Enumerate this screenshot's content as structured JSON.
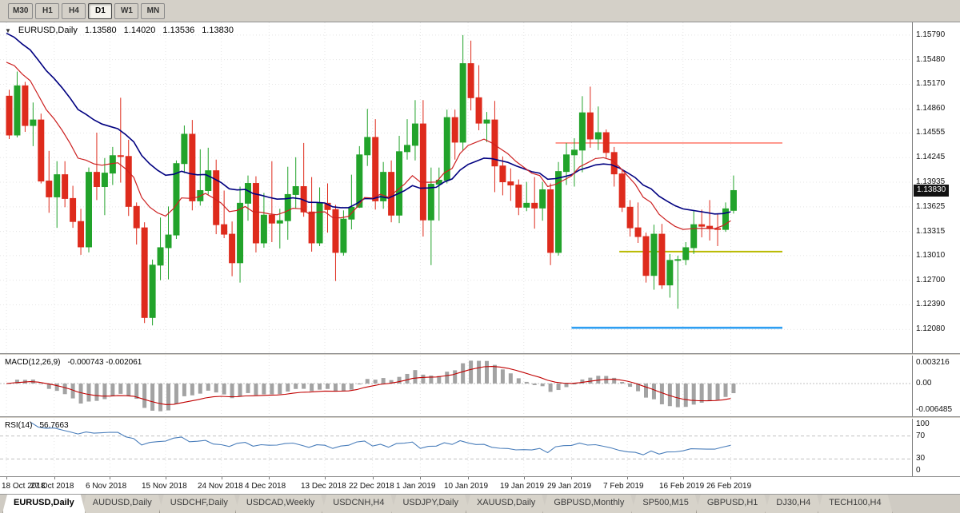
{
  "toolbar": {
    "timeframes": [
      {
        "label": "M30",
        "active": false
      },
      {
        "label": "H1",
        "active": false
      },
      {
        "label": "H4",
        "active": false
      },
      {
        "label": "D1",
        "active": true
      },
      {
        "label": "W1",
        "active": false
      },
      {
        "label": "MN",
        "active": false
      }
    ]
  },
  "chart": {
    "info": {
      "symbol_period": "EURUSD,Daily",
      "open": "1.13580",
      "high": "1.14020",
      "low": "1.13536",
      "close": "1.13830"
    }
  },
  "colors": {
    "bull": "#22a32b",
    "bear": "#de2b1c",
    "ma_slow": "#000080",
    "ma_fast": "#cc2020",
    "macd_hist": "#a3a3a3",
    "macd_signal": "#c00000",
    "rsi_line": "#4a7ebb",
    "level_red": "#ff6a5a",
    "level_yellow": "#b9ba00",
    "level_blue": "#2f9ff2",
    "grid": "#e4e4e4",
    "level_dash": "#c0c0c0",
    "price_tag_bg": "#111111",
    "price_tag_text": "#ffffff"
  },
  "chart_data": {
    "type": "candlestick",
    "title": "EURUSD,Daily",
    "price_ticks": [
      "1.15790",
      "1.15480",
      "1.15170",
      "1.14860",
      "1.14555",
      "1.14245",
      "1.13935",
      "1.13625",
      "1.13315",
      "1.13010",
      "1.12700",
      "1.12390",
      "1.12080"
    ],
    "price_range": [
      1.1178,
      1.1595
    ],
    "current_price": "1.13830",
    "current_price_value": 1.1383,
    "date_ticks": [
      [
        0,
        "18 Oct 2018"
      ],
      [
        6,
        "27 Oct 2018"
      ],
      [
        13,
        "6 Nov 2018"
      ],
      [
        20,
        "15 Nov 2018"
      ],
      [
        27,
        "24 Nov 2018"
      ],
      [
        33,
        "4 Dec 2018"
      ],
      [
        40,
        "13 Dec 2018"
      ],
      [
        46,
        "22 Dec 2018"
      ],
      [
        52,
        "1 Jan 2019"
      ],
      [
        58,
        "10 Jan 2019"
      ],
      [
        65,
        "19 Jan 2019"
      ],
      [
        71,
        "29 Jan 2019"
      ],
      [
        78,
        "7 Feb 2019"
      ],
      [
        85,
        "16 Feb 2019"
      ],
      [
        91,
        "26 Feb 2019"
      ]
    ],
    "ohlc": [
      [
        1.1502,
        1.151,
        1.1448,
        1.1453
      ],
      [
        1.1453,
        1.1533,
        1.145,
        1.1515
      ],
      [
        1.1515,
        1.152,
        1.1457,
        1.1465
      ],
      [
        1.1465,
        1.1494,
        1.1439,
        1.1472
      ],
      [
        1.1472,
        1.148,
        1.1392,
        1.1395
      ],
      [
        1.1395,
        1.1433,
        1.1355,
        1.1375
      ],
      [
        1.1375,
        1.142,
        1.1336,
        1.1403
      ],
      [
        1.1403,
        1.142,
        1.1362,
        1.1373
      ],
      [
        1.1373,
        1.1389,
        1.1336,
        1.1344
      ],
      [
        1.1344,
        1.136,
        1.1302,
        1.1312
      ],
      [
        1.1312,
        1.1412,
        1.1305,
        1.1406
      ],
      [
        1.1406,
        1.1456,
        1.1371,
        1.1388
      ],
      [
        1.1388,
        1.1424,
        1.1352,
        1.1405
      ],
      [
        1.1405,
        1.1438,
        1.139,
        1.1427
      ],
      [
        1.1427,
        1.15,
        1.1393,
        1.1426
      ],
      [
        1.1426,
        1.1447,
        1.1351,
        1.1363
      ],
      [
        1.1363,
        1.1368,
        1.1315,
        1.1336
      ],
      [
        1.1336,
        1.1343,
        1.1216,
        1.1223
      ],
      [
        1.1223,
        1.1296,
        1.1213,
        1.1289
      ],
      [
        1.1289,
        1.1349,
        1.127,
        1.1311
      ],
      [
        1.1311,
        1.1363,
        1.1271,
        1.1327
      ],
      [
        1.1327,
        1.1421,
        1.1322,
        1.1417
      ],
      [
        1.1417,
        1.1465,
        1.1405,
        1.1454
      ],
      [
        1.1454,
        1.1472,
        1.1358,
        1.137
      ],
      [
        1.137,
        1.1435,
        1.1364,
        1.1383
      ],
      [
        1.1383,
        1.1437,
        1.1378,
        1.1408
      ],
      [
        1.1408,
        1.1422,
        1.1328,
        1.134
      ],
      [
        1.134,
        1.1383,
        1.1323,
        1.1328
      ],
      [
        1.1328,
        1.1344,
        1.1275,
        1.1292
      ],
      [
        1.1292,
        1.1388,
        1.1267,
        1.1367
      ],
      [
        1.1367,
        1.1402,
        1.1345,
        1.1392
      ],
      [
        1.1392,
        1.1401,
        1.1305,
        1.1317
      ],
      [
        1.1317,
        1.138,
        1.1311,
        1.1352
      ],
      [
        1.1352,
        1.142,
        1.1318,
        1.1342
      ],
      [
        1.1342,
        1.136,
        1.131,
        1.1345
      ],
      [
        1.1345,
        1.1413,
        1.1321,
        1.1378
      ],
      [
        1.1378,
        1.1425,
        1.136,
        1.1388
      ],
      [
        1.1388,
        1.1443,
        1.135,
        1.1356
      ],
      [
        1.1356,
        1.14,
        1.1306,
        1.1317
      ],
      [
        1.1317,
        1.1387,
        1.1313,
        1.1367
      ],
      [
        1.1367,
        1.1392,
        1.133,
        1.1359
      ],
      [
        1.1359,
        1.1365,
        1.1269,
        1.1305
      ],
      [
        1.1305,
        1.1358,
        1.1301,
        1.1347
      ],
      [
        1.1347,
        1.1403,
        1.1334,
        1.1362
      ],
      [
        1.1362,
        1.1439,
        1.1361,
        1.1428
      ],
      [
        1.1428,
        1.1486,
        1.1414,
        1.145
      ],
      [
        1.145,
        1.1473,
        1.1359,
        1.137
      ],
      [
        1.137,
        1.1419,
        1.136,
        1.1406
      ],
      [
        1.1406,
        1.1421,
        1.1343,
        1.1352
      ],
      [
        1.1352,
        1.1452,
        1.1342,
        1.1432
      ],
      [
        1.1432,
        1.1473,
        1.1422,
        1.144
      ],
      [
        1.144,
        1.1497,
        1.1421,
        1.1467
      ],
      [
        1.1467,
        1.1497,
        1.1325,
        1.1346
      ],
      [
        1.1346,
        1.1412,
        1.1289,
        1.1391
      ],
      [
        1.1391,
        1.1412,
        1.1345,
        1.1396
      ],
      [
        1.1396,
        1.1485,
        1.1392,
        1.1475
      ],
      [
        1.1475,
        1.1485,
        1.1422,
        1.1444
      ],
      [
        1.1444,
        1.1579,
        1.1434,
        1.1543
      ],
      [
        1.1543,
        1.1572,
        1.1484,
        1.15
      ],
      [
        1.15,
        1.1541,
        1.1459,
        1.1468
      ],
      [
        1.1468,
        1.1482,
        1.1444,
        1.1472
      ],
      [
        1.1472,
        1.1496,
        1.1381,
        1.1414
      ],
      [
        1.1414,
        1.1426,
        1.1377,
        1.1394
      ],
      [
        1.1394,
        1.1411,
        1.137,
        1.139
      ],
      [
        1.139,
        1.1397,
        1.1352,
        1.1362
      ],
      [
        1.1362,
        1.1394,
        1.1357,
        1.1367
      ],
      [
        1.1367,
        1.14,
        1.1335,
        1.1361
      ],
      [
        1.1361,
        1.1394,
        1.1345,
        1.1384
      ],
      [
        1.1384,
        1.1392,
        1.1289,
        1.1305
      ],
      [
        1.1305,
        1.1419,
        1.1301,
        1.1407
      ],
      [
        1.1407,
        1.1443,
        1.139,
        1.1428
      ],
      [
        1.1428,
        1.1449,
        1.1388,
        1.1434
      ],
      [
        1.1434,
        1.1502,
        1.1406,
        1.1481
      ],
      [
        1.1481,
        1.1514,
        1.1437,
        1.1448
      ],
      [
        1.1448,
        1.1489,
        1.1434,
        1.1456
      ],
      [
        1.1456,
        1.146,
        1.1424,
        1.1431
      ],
      [
        1.1431,
        1.1438,
        1.1388,
        1.1404
      ],
      [
        1.1404,
        1.141,
        1.1356,
        1.1362
      ],
      [
        1.1362,
        1.1371,
        1.1325,
        1.1336
      ],
      [
        1.1336,
        1.1368,
        1.1317,
        1.1325
      ],
      [
        1.1325,
        1.133,
        1.1267,
        1.1276
      ],
      [
        1.1276,
        1.134,
        1.1258,
        1.1328
      ],
      [
        1.1328,
        1.1341,
        1.1259,
        1.1264
      ],
      [
        1.1264,
        1.1303,
        1.1248,
        1.1295
      ],
      [
        1.1295,
        1.1301,
        1.1234,
        1.1296
      ],
      [
        1.1296,
        1.1318,
        1.1289,
        1.1311
      ],
      [
        1.1311,
        1.1358,
        1.1303,
        1.134
      ],
      [
        1.134,
        1.1359,
        1.1324,
        1.1338
      ],
      [
        1.1338,
        1.1371,
        1.132,
        1.1335
      ],
      [
        1.1335,
        1.1354,
        1.1313,
        1.1334
      ],
      [
        1.1334,
        1.1368,
        1.1331,
        1.136
      ],
      [
        1.1358,
        1.1402,
        1.1354,
        1.1383
      ]
    ],
    "overlays": [
      {
        "name": "ma-slow",
        "period": 25,
        "seed": 1.1592
      },
      {
        "name": "ma-fast",
        "period": 13,
        "seed": 1.156
      }
    ],
    "hlines": [
      {
        "price": 1.1443,
        "from_index": 69,
        "color": "level_red",
        "width": 1.4
      },
      {
        "price": 1.1306,
        "from_index": 77,
        "color": "level_yellow",
        "width": 2
      },
      {
        "price": 1.121,
        "from_index": 71,
        "color": "level_blue",
        "width": 2.6
      }
    ],
    "indicators": [
      {
        "type": "macd",
        "label": "MACD(12,26,9)",
        "values_text": "-0.000743 -0.002061",
        "params": {
          "fast": 12,
          "slow": 26,
          "signal": 9
        },
        "axis_labels": [
          "0.003216",
          "0.00",
          "-0.006485"
        ]
      },
      {
        "type": "rsi",
        "label": "RSI(14)",
        "values_text": "56.7663",
        "params": {
          "period": 14
        },
        "axis_labels": [
          "100",
          "70",
          "30",
          "0"
        ],
        "levels": [
          70,
          30
        ]
      }
    ]
  },
  "tabs": [
    {
      "label": "EURUSD,Daily",
      "active": true
    },
    {
      "label": "AUDUSD,Daily",
      "active": false
    },
    {
      "label": "USDCHF,Daily",
      "active": false
    },
    {
      "label": "USDCAD,Weekly",
      "active": false
    },
    {
      "label": "USDCNH,H4",
      "active": false
    },
    {
      "label": "USDJPY,Daily",
      "active": false
    },
    {
      "label": "XAUUSD,Daily",
      "active": false
    },
    {
      "label": "GBPUSD,Monthly",
      "active": false
    },
    {
      "label": "SP500,M15",
      "active": false
    },
    {
      "label": "GBPUSD,H1",
      "active": false
    },
    {
      "label": "DJ30,H4",
      "active": false
    },
    {
      "label": "TECH100,H4",
      "active": false
    }
  ]
}
